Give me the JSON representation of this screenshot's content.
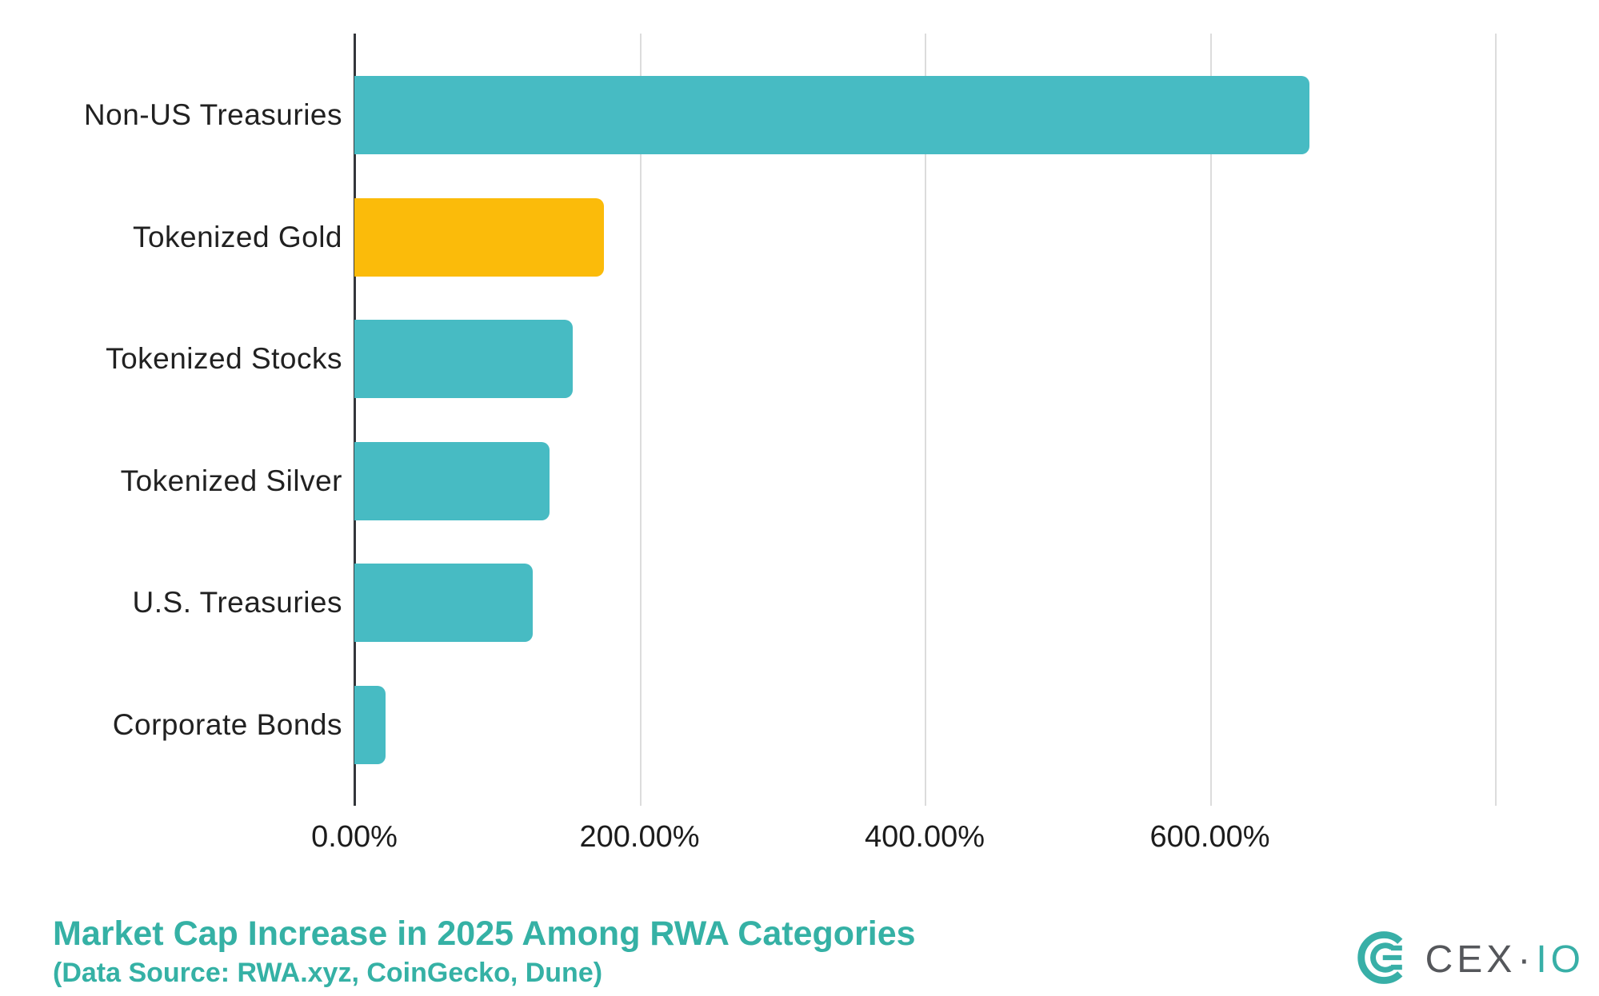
{
  "chart_data": {
    "type": "bar",
    "orientation": "horizontal",
    "title": "Market Cap Increase in 2025 Among RWA Categories",
    "subtitle": "(Data Source: RWA.xyz, CoinGecko, Dune)",
    "categories": [
      "Non-US Treasuries",
      "Tokenized Gold",
      "Tokenized Stocks",
      "Tokenized Silver",
      "U.S. Treasuries",
      "Corporate Bonds"
    ],
    "values": [
      670,
      175,
      153,
      137,
      125,
      22
    ],
    "unit": "%",
    "xlim": [
      0,
      800
    ],
    "x_ticks": [
      {
        "value": 0,
        "label": "0.00%"
      },
      {
        "value": 200,
        "label": "200.00%"
      },
      {
        "value": 400,
        "label": "400.00%"
      },
      {
        "value": 600,
        "label": "600.00%"
      }
    ],
    "gridlines_at": [
      200,
      400,
      600,
      800
    ],
    "grid": "vertical",
    "legend": "none",
    "bar_colors": [
      "#47BBC3",
      "#FBBB0A",
      "#47BBC3",
      "#47BBC3",
      "#47BBC3",
      "#47BBC3"
    ],
    "highlight_category": "Tokenized Gold"
  },
  "branding": {
    "logo_primary": "CEX",
    "logo_separator": "·",
    "logo_secondary": "IO"
  },
  "colors": {
    "background": "#FFFFFF",
    "bar_teal": "#47BBC3",
    "bar_gold": "#FBBB0A",
    "title_teal": "#35B1A5",
    "axis_line": "#33363B",
    "gridline": "#DCDCDC",
    "label_text": "#212121",
    "logo_gray": "#55575B"
  }
}
